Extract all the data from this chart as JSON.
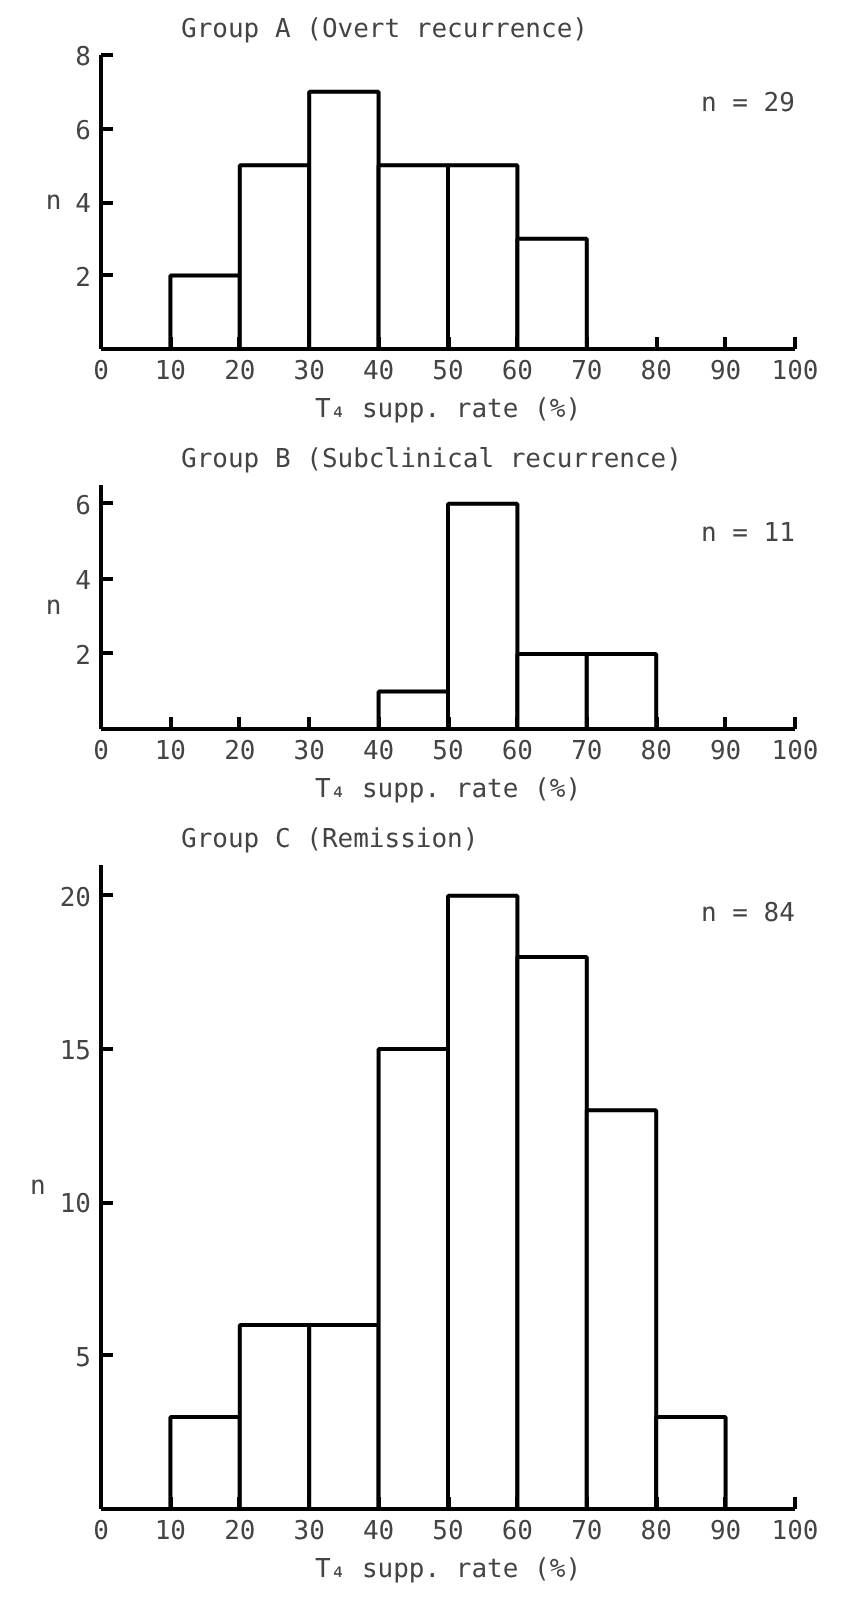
{
  "chart_data": [
    {
      "type": "histogram",
      "title": "Group A (Overt recurrence)",
      "xlabel": "T₄ supp. rate (%)",
      "ylabel": "n",
      "bins": [
        10,
        20,
        30,
        40,
        50,
        60,
        70
      ],
      "values": [
        2,
        5,
        7,
        5,
        5,
        3
      ],
      "xlim": [
        0,
        100
      ],
      "xticks": [
        0,
        10,
        20,
        30,
        40,
        50,
        60,
        70,
        80,
        90,
        100
      ],
      "ylim": [
        0,
        8
      ],
      "yticks": [
        2,
        4,
        6,
        8
      ],
      "annotations": [
        "n = 29"
      ],
      "grid": false
    },
    {
      "type": "histogram",
      "title": "Group B (Subclinical recurrence)",
      "xlabel": "T₄ supp. rate (%)",
      "ylabel": "n",
      "bins": [
        40,
        50,
        60,
        70,
        80
      ],
      "values": [
        1,
        6,
        2,
        2
      ],
      "xlim": [
        0,
        100
      ],
      "xticks": [
        0,
        10,
        20,
        30,
        40,
        50,
        60,
        70,
        80,
        90,
        100
      ],
      "ylim": [
        0,
        6.5
      ],
      "yticks": [
        2,
        4,
        6
      ],
      "annotations": [
        "n = 11"
      ],
      "grid": false
    },
    {
      "type": "histogram",
      "title": "Group C (Remission)",
      "xlabel": "T₄ supp. rate (%)",
      "ylabel": "n",
      "bins": [
        10,
        20,
        30,
        40,
        50,
        60,
        70,
        80,
        90
      ],
      "values": [
        3,
        6,
        6,
        15,
        20,
        18,
        13,
        3
      ],
      "xlim": [
        0,
        100
      ],
      "xticks": [
        0,
        10,
        20,
        30,
        40,
        50,
        60,
        70,
        80,
        90,
        100
      ],
      "ylim": [
        0,
        21
      ],
      "yticks": [
        5,
        10,
        15,
        20
      ],
      "annotations": [
        "n = 84"
      ],
      "grid": false
    }
  ]
}
